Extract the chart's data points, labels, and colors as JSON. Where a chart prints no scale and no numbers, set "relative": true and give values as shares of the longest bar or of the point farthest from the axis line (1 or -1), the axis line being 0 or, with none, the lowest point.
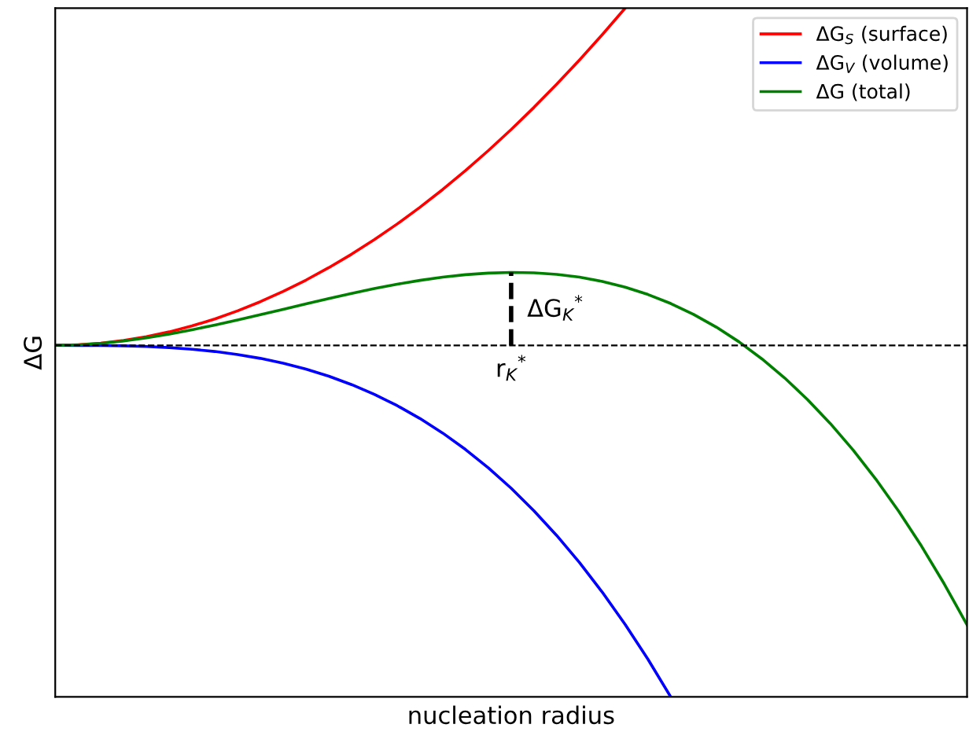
{
  "chart_data": {
    "type": "line",
    "relative": true,
    "xlabel": "nucleation radius",
    "ylabel": "ΔG",
    "categories": [
      null,
      null,
      null,
      null,
      null,
      null,
      null,
      null,
      null,
      null,
      null,
      null,
      null,
      null,
      null,
      null,
      null,
      null,
      null,
      null,
      null,
      null,
      null,
      null,
      null,
      null,
      null,
      null,
      null,
      null,
      null,
      null,
      null,
      null,
      null,
      null,
      null,
      null,
      null,
      null,
      null
    ],
    "series": [
      {
        "name": "ΔG$_{S}$ (surface)",
        "color": "#ff0000",
        "values": [
          0,
          0.0015,
          0.0061,
          0.0138,
          0.0246,
          0.0384,
          0.0553,
          0.0752,
          0.0982,
          0.1243,
          0.1535,
          0.1857,
          0.2211,
          0.2594,
          0.3009,
          0.3454,
          0.393,
          0.4436,
          0.4974,
          0.5542,
          0.614,
          0.677,
          0.743,
          0.8121,
          0.8842,
          0.9594,
          null,
          null,
          null,
          null,
          null,
          null,
          null,
          null,
          null,
          null,
          null,
          null,
          null,
          null,
          null
        ]
      },
      {
        "name": "ΔG$_{V}$ (volume)",
        "color": "#0000ff",
        "values": [
          0,
          -0.0001,
          -0.0004,
          -0.0014,
          -0.0033,
          -0.0064,
          -0.011,
          -0.0174,
          -0.026,
          -0.037,
          -0.0508,
          -0.0676,
          -0.0878,
          -0.1116,
          -0.1394,
          -0.1715,
          -0.2081,
          -0.2496,
          -0.2963,
          -0.3485,
          -0.4064,
          -0.4705,
          -0.541,
          -0.6181,
          -0.7023,
          -0.7938,
          -0.8929,
          -1.0,
          null,
          null,
          null,
          null,
          null,
          null,
          null,
          null,
          null,
          null,
          null,
          null,
          null
        ]
      },
      {
        "name": "ΔG (total)",
        "color": "#008000",
        "values": [
          0,
          0.0014,
          0.0057,
          0.0124,
          0.0213,
          0.032,
          0.0443,
          0.0578,
          0.0722,
          0.0873,
          0.1027,
          0.1181,
          0.1333,
          0.1478,
          0.1615,
          0.1739,
          0.1849,
          0.194,
          0.2011,
          0.2057,
          0.2076,
          0.2065,
          0.202,
          0.194,
          0.1819,
          0.1656,
          0.1448,
          0.1191,
          0.0882,
          0.0519,
          0.0099,
          -0.0383,
          -0.0928,
          -0.1541,
          -0.2222,
          -0.2977,
          -0.3808,
          -0.4718,
          -0.571,
          -0.6787,
          -0.7953
        ]
      }
    ],
    "ref_lines": [
      {
        "axis": "y",
        "value": 0,
        "color": "#000000",
        "line_style": "dashed"
      }
    ],
    "annotations": [
      "ΔG$_{K}$$^{*}$",
      "r$_{K}$$^{*}$"
    ],
    "legend": "top right"
  }
}
